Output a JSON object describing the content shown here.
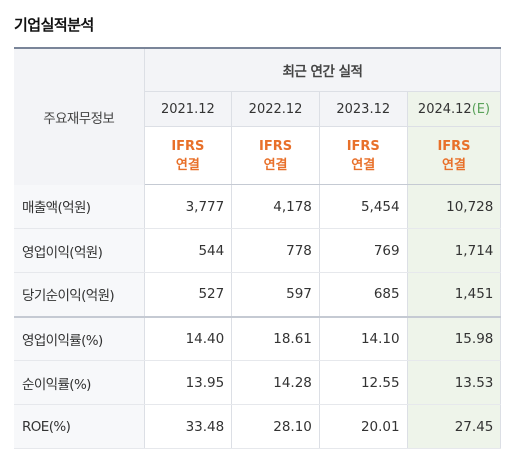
{
  "section_title": "기업실적분석",
  "table": {
    "row_header_label": "주요재무정보",
    "group_header": "최근 연간 실적",
    "years": [
      {
        "label": "2021.12",
        "estimate_mark": "",
        "accounting": [
          "IFRS",
          "연결"
        ]
      },
      {
        "label": "2022.12",
        "estimate_mark": "",
        "accounting": [
          "IFRS",
          "연결"
        ]
      },
      {
        "label": "2023.12",
        "estimate_mark": "",
        "accounting": [
          "IFRS",
          "연결"
        ]
      },
      {
        "label": "2024.12",
        "estimate_mark": "(E)",
        "accounting": [
          "IFRS",
          "연결"
        ]
      }
    ],
    "rows": [
      {
        "label": "매출액(억원)",
        "values": [
          "3,777",
          "4,178",
          "5,454",
          "10,728"
        ]
      },
      {
        "label": "영업이익(억원)",
        "values": [
          "544",
          "778",
          "769",
          "1,714"
        ]
      },
      {
        "label": "당기순이익(억원)",
        "values": [
          "527",
          "597",
          "685",
          "1,451"
        ]
      },
      {
        "label": "영업이익률(%)",
        "values": [
          "14.40",
          "18.61",
          "14.10",
          "15.98"
        ]
      },
      {
        "label": "순이익률(%)",
        "values": [
          "13.95",
          "14.28",
          "12.55",
          "13.53"
        ]
      },
      {
        "label": "ROE(%)",
        "values": [
          "33.48",
          "28.10",
          "20.01",
          "27.45"
        ]
      }
    ]
  },
  "colors": {
    "estimate_column_bg": "#eef4ea",
    "accounting_text": "#e8702a",
    "estimate_mark": "#5aa25a",
    "header_bg": "#f3f4f7"
  }
}
